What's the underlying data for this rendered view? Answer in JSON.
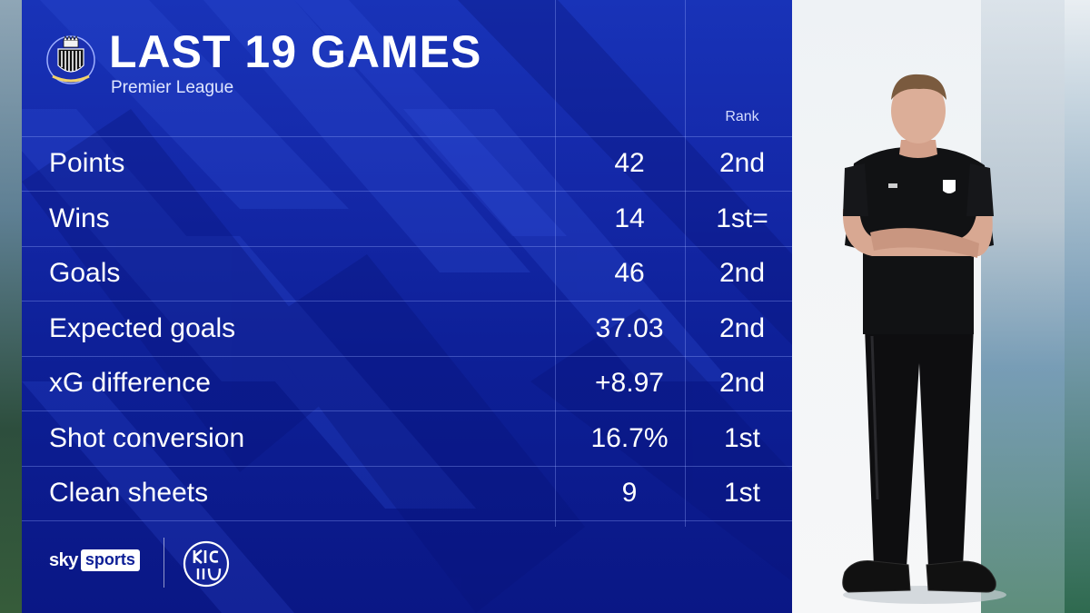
{
  "header": {
    "title": "LAST 19 GAMES",
    "subtitle": "Premier League"
  },
  "table": {
    "rank_header": "Rank",
    "rows": [
      {
        "label": "Points",
        "value": "42",
        "rank": "2nd"
      },
      {
        "label": "Wins",
        "value": "14",
        "rank": "1st="
      },
      {
        "label": "Goals",
        "value": "46",
        "rank": "2nd"
      },
      {
        "label": "Expected goals",
        "value": "37.03",
        "rank": "2nd"
      },
      {
        "label": "xG difference",
        "value": "+8.97",
        "rank": "2nd"
      },
      {
        "label": "Shot conversion",
        "value": "16.7%",
        "rank": "1st"
      },
      {
        "label": "Clean sheets",
        "value": "9",
        "rank": "1st"
      }
    ]
  },
  "footer": {
    "sky_word": "sky",
    "sports_word": "sports"
  },
  "icons": {
    "crest": "newcastle-united-crest-icon",
    "kick_it_out": "kick-it-out-logo-icon",
    "manager": "manager-photo"
  },
  "colors": {
    "panel_blue": "#1428a8",
    "text": "#ffffff"
  }
}
